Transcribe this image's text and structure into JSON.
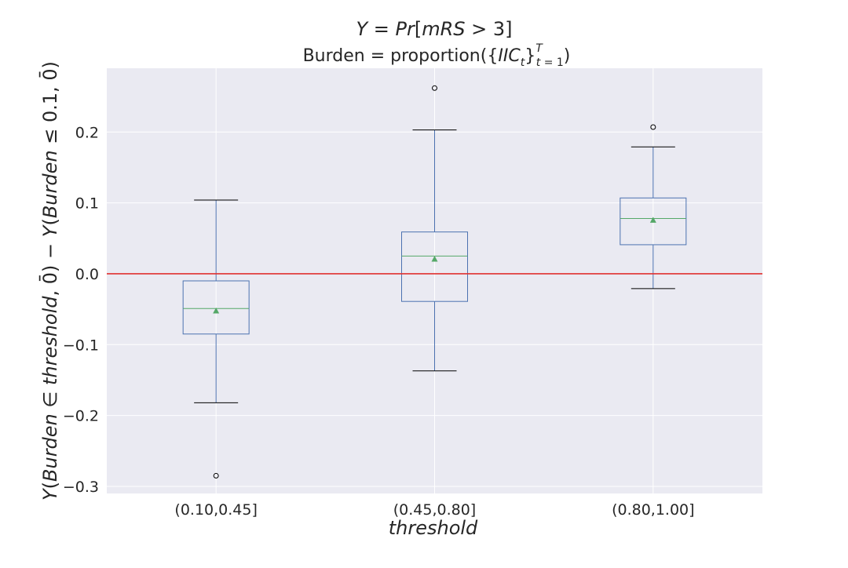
{
  "chart_data": {
    "type": "box",
    "title": "Y = Pr[mRS > 3]",
    "subtitle": "Burden = proportion({IIC_t}_{t=1}^T)",
    "xlabel": "threshold",
    "ylabel": "Y(Burden ∈ threshold, 0̄) − Y(Burden ≤ 0.1, 0̄)",
    "categories": [
      "(0.10,0.45]",
      "(0.45,0.80]",
      "(0.80,1.00]"
    ],
    "ylim": [
      -0.31,
      0.29
    ],
    "yticks": [
      -0.3,
      -0.2,
      -0.1,
      0.0,
      0.1,
      0.2
    ],
    "ytick_labels": [
      "-0.3",
      "-0.2",
      "-0.1",
      "0.0",
      "0.1",
      "0.2"
    ],
    "reference_line": {
      "y": 0.0,
      "color": "#e03030"
    },
    "grid": true,
    "boxes": [
      {
        "category": "(0.10,0.45]",
        "whisker_low": -0.182,
        "q1": -0.085,
        "median": -0.049,
        "mean": -0.052,
        "q3": -0.01,
        "whisker_high": 0.104,
        "outliers": [
          -0.285
        ]
      },
      {
        "category": "(0.45,0.80]",
        "whisker_low": -0.137,
        "q1": -0.039,
        "median": 0.025,
        "mean": 0.021,
        "q3": 0.059,
        "whisker_high": 0.203,
        "outliers": [
          0.262
        ]
      },
      {
        "category": "(0.80,1.00]",
        "whisker_low": -0.021,
        "q1": 0.041,
        "median": 0.078,
        "mean": 0.076,
        "q3": 0.107,
        "whisker_high": 0.179,
        "outliers": [
          0.207
        ]
      }
    ],
    "colors": {
      "plot_bg": "#eaeaf2",
      "grid": "#ffffff",
      "box": "#4c72b0",
      "median": "#55a868",
      "mean_marker": "#55a868",
      "caps": "#000000"
    }
  }
}
